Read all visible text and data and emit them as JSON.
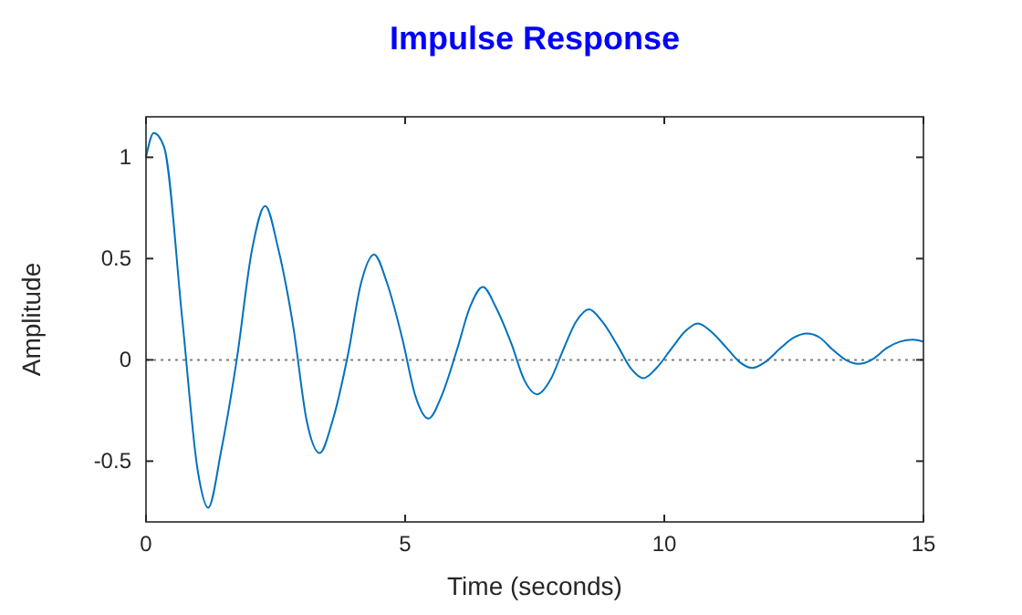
{
  "chart_data": {
    "type": "line",
    "title": "Impulse Response",
    "xlabel": "Time (seconds)",
    "ylabel": "Amplitude",
    "x": [
      0,
      0.15,
      0.35,
      0.7,
      1.0,
      1.2,
      1.45,
      1.75,
      2.05,
      2.3,
      2.55,
      2.85,
      3.1,
      3.35,
      3.6,
      3.9,
      4.15,
      4.4,
      4.65,
      4.95,
      5.2,
      5.45,
      5.7,
      6.0,
      6.25,
      6.5,
      6.75,
      7.05,
      7.3,
      7.55,
      7.8,
      8.05,
      8.3,
      8.55,
      8.8,
      9.1,
      9.35,
      9.6,
      9.85,
      10.15,
      10.4,
      10.65,
      10.9,
      11.2,
      11.45,
      11.7,
      11.95,
      12.25,
      12.5,
      12.75,
      13.0,
      13.25,
      13.5,
      13.75,
      14.0,
      14.3,
      14.55,
      14.8,
      15
    ],
    "series": [
      {
        "color": "#0072bd",
        "values": [
          1.0,
          1.12,
          1.05,
          0.2,
          -0.55,
          -0.73,
          -0.45,
          0.0,
          0.55,
          0.76,
          0.55,
          0.15,
          -0.3,
          -0.46,
          -0.3,
          0.03,
          0.38,
          0.52,
          0.38,
          0.1,
          -0.18,
          -0.29,
          -0.18,
          0.05,
          0.26,
          0.36,
          0.26,
          0.08,
          -0.1,
          -0.17,
          -0.1,
          0.05,
          0.19,
          0.25,
          0.19,
          0.07,
          -0.04,
          -0.09,
          -0.04,
          0.06,
          0.14,
          0.18,
          0.14,
          0.06,
          -0.01,
          -0.04,
          -0.01,
          0.06,
          0.11,
          0.13,
          0.11,
          0.05,
          0.0,
          -0.02,
          0.0,
          0.06,
          0.09,
          0.1,
          0.09
        ]
      }
    ],
    "xlim": [
      0,
      15
    ],
    "xticks": [
      0,
      5,
      10,
      15
    ],
    "ylim": [
      -0.8,
      1.2
    ],
    "yticks": [
      -0.5,
      0,
      0.5,
      1
    ],
    "ref_lines": [
      {
        "axis": "y",
        "value": 0,
        "color": "#808080",
        "line_style": "dotted"
      }
    ],
    "grid": false,
    "marker": "none",
    "line_style": "solid"
  }
}
